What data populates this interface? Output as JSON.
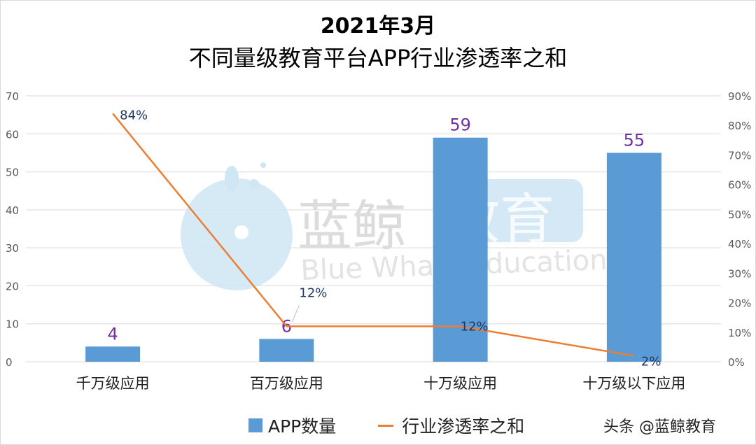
{
  "title_line1": "2021年3月",
  "title_line2": "不同量级教育平台APP行业渗透率之和",
  "watermark": {
    "cn_part1": "蓝鲸",
    "cn_part2": "教育",
    "en": "Blue Whale Education"
  },
  "legend": {
    "bar_label": "APP数量",
    "line_label": "行业渗透率之和"
  },
  "credit": "头条 @蓝鲸教育",
  "colors": {
    "bar": "#5b9bd5",
    "line": "#ed7d31",
    "bar_label": "#7030a0",
    "line_label": "#1f3864",
    "grid": "#e6e6e6",
    "axis_text": "#595959"
  },
  "chart_data": {
    "type": "bar+line",
    "title": "2021年3月 不同量级教育平台APP行业渗透率之和",
    "categories": [
      "千万级应用",
      "百万级应用",
      "十万级应用",
      "十万级以下应用"
    ],
    "series": [
      {
        "name": "APP数量",
        "type": "bar",
        "axis": "left",
        "values": [
          4,
          6,
          59,
          55
        ],
        "labels": [
          "4",
          "6",
          "59",
          "55"
        ]
      },
      {
        "name": "行业渗透率之和",
        "type": "line",
        "axis": "right",
        "values": [
          0.84,
          0.12,
          0.12,
          0.02
        ],
        "labels": [
          "84%",
          "12%",
          "12%",
          "2%"
        ]
      }
    ],
    "left_axis": {
      "ylim": [
        0,
        70
      ],
      "ticks": [
        "0",
        "10",
        "20",
        "30",
        "40",
        "50",
        "60",
        "70"
      ]
    },
    "right_axis": {
      "ylim": [
        0,
        0.9
      ],
      "ticks": [
        "0%",
        "10%",
        "20%",
        "30%",
        "40%",
        "50%",
        "60%",
        "70%",
        "80%",
        "90%"
      ]
    },
    "grid": true,
    "legend_position": "bottom"
  }
}
